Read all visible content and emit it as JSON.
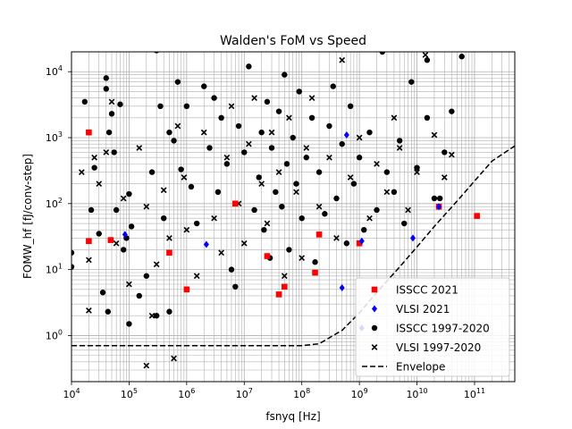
{
  "chart_data": {
    "type": "scatter",
    "title": "Walden's FoM vs Speed",
    "xlabel": "fsnyq [Hz]",
    "ylabel": "FOMW_hf [fJ/conv-step]",
    "xscale": "log",
    "yscale": "log",
    "xlim": [
      10000,
      500000000000
    ],
    "ylim": [
      0.2,
      20000
    ],
    "grid": true,
    "grid_minor": true,
    "legend_position": "bottom-right",
    "x_ticks": [
      {
        "value": 10000,
        "base": "10",
        "exp": "4"
      },
      {
        "value": 100000,
        "base": "10",
        "exp": "5"
      },
      {
        "value": 1000000,
        "base": "10",
        "exp": "6"
      },
      {
        "value": 10000000,
        "base": "10",
        "exp": "7"
      },
      {
        "value": 100000000,
        "base": "10",
        "exp": "8"
      },
      {
        "value": 1000000000,
        "base": "10",
        "exp": "9"
      },
      {
        "value": 10000000000,
        "base": "10",
        "exp": "10"
      },
      {
        "value": 100000000000,
        "base": "10",
        "exp": "11"
      }
    ],
    "y_ticks": [
      {
        "value": 1,
        "base": "10",
        "exp": "0"
      },
      {
        "value": 10,
        "base": "10",
        "exp": "1"
      },
      {
        "value": 100,
        "base": "10",
        "exp": "2"
      },
      {
        "value": 1000,
        "base": "10",
        "exp": "3"
      },
      {
        "value": 10000,
        "base": "10",
        "exp": "4"
      }
    ],
    "series": [
      {
        "name": "ISSCC 2021",
        "marker": "square",
        "color": "#ff0000",
        "points": [
          [
            20000,
            27
          ],
          [
            20000,
            1200
          ],
          [
            48000,
            28
          ],
          [
            500000,
            18
          ],
          [
            1000000,
            5
          ],
          [
            7000000,
            100
          ],
          [
            25000000,
            16
          ],
          [
            40000000,
            4.2
          ],
          [
            50000000,
            5.5
          ],
          [
            200000000,
            34
          ],
          [
            1000000000,
            25
          ],
          [
            24000000000,
            90
          ],
          [
            110000000000,
            65
          ],
          [
            170000000,
            9
          ]
        ]
      },
      {
        "name": "VLSI 2021",
        "marker": "diamond",
        "color": "#0000ff",
        "points": [
          [
            85000,
            34
          ],
          [
            2200000,
            24
          ],
          [
            600000000,
            1100
          ],
          [
            500000000,
            5.3
          ],
          [
            1100000000,
            27
          ],
          [
            8500000000,
            30
          ],
          [
            24000000000,
            90
          ],
          [
            1100000000,
            1.3
          ]
        ]
      },
      {
        "name": "ISSCC 1997-2020",
        "marker": "circle",
        "color": "#000000",
        "points": [
          [
            10000,
            18
          ],
          [
            10000,
            11
          ],
          [
            17000,
            3500
          ],
          [
            20000,
            1200
          ],
          [
            22000,
            80
          ],
          [
            25000,
            350
          ],
          [
            30000,
            35
          ],
          [
            35000,
            4.5
          ],
          [
            40000,
            8000
          ],
          [
            40000,
            5500
          ],
          [
            43000,
            2.3
          ],
          [
            45000,
            1200
          ],
          [
            50000,
            2300
          ],
          [
            55000,
            600
          ],
          [
            60000,
            80
          ],
          [
            70000,
            3200
          ],
          [
            80000,
            20
          ],
          [
            90000,
            30
          ],
          [
            100000,
            140
          ],
          [
            100000,
            1.5
          ],
          [
            110000,
            45
          ],
          [
            150000,
            4
          ],
          [
            200000,
            8
          ],
          [
            250000,
            300
          ],
          [
            300000,
            2
          ],
          [
            300000,
            21000
          ],
          [
            350000,
            3000
          ],
          [
            400000,
            60
          ],
          [
            500000,
            2.3
          ],
          [
            500000,
            1200
          ],
          [
            600000,
            900
          ],
          [
            700000,
            7000
          ],
          [
            800000,
            330
          ],
          [
            1000000,
            3000
          ],
          [
            1200000,
            180
          ],
          [
            1500000,
            50
          ],
          [
            2000000,
            6000
          ],
          [
            2500000,
            700
          ],
          [
            3000000,
            4000
          ],
          [
            3500000,
            150
          ],
          [
            4000000,
            2000
          ],
          [
            5000000,
            400
          ],
          [
            6000000,
            10
          ],
          [
            7000000,
            5.5
          ],
          [
            8000000,
            1500
          ],
          [
            10000000,
            600
          ],
          [
            12000000,
            12000
          ],
          [
            15000000,
            80
          ],
          [
            18000000,
            250
          ],
          [
            20000000,
            1200
          ],
          [
            22000000,
            40
          ],
          [
            25000000,
            3500
          ],
          [
            28000000,
            15
          ],
          [
            30000000,
            700
          ],
          [
            35000000,
            150
          ],
          [
            40000000,
            2500
          ],
          [
            45000000,
            90
          ],
          [
            50000000,
            9000
          ],
          [
            55000000,
            400
          ],
          [
            60000000,
            20
          ],
          [
            70000000,
            1000
          ],
          [
            80000000,
            200
          ],
          [
            90000000,
            5000
          ],
          [
            100000000,
            60
          ],
          [
            120000000,
            500
          ],
          [
            150000000,
            2000
          ],
          [
            170000000,
            13
          ],
          [
            200000000,
            300
          ],
          [
            250000000,
            70
          ],
          [
            300000000,
            1500
          ],
          [
            350000000,
            6000
          ],
          [
            400000000,
            120
          ],
          [
            500000000,
            800
          ],
          [
            600000000,
            25
          ],
          [
            700000000,
            3000
          ],
          [
            800000000,
            200
          ],
          [
            1000000000,
            500
          ],
          [
            1200000000,
            40
          ],
          [
            1500000000,
            1200
          ],
          [
            2000000000,
            80
          ],
          [
            2500000000,
            20000
          ],
          [
            3000000000,
            300
          ],
          [
            4000000000,
            150
          ],
          [
            5000000000,
            900
          ],
          [
            6000000000,
            50
          ],
          [
            8000000000,
            7000
          ],
          [
            10000000000,
            350
          ],
          [
            15000000000,
            2000
          ],
          [
            20000000000,
            120
          ],
          [
            30000000000,
            600
          ],
          [
            40000000000,
            2500
          ],
          [
            25000000000,
            120
          ],
          [
            60000000000,
            17000
          ],
          [
            15000000000,
            15000
          ]
        ]
      },
      {
        "name": "VLSI 1997-2020",
        "marker": "x",
        "color": "#000000",
        "points": [
          [
            15000,
            300
          ],
          [
            20000,
            2.4
          ],
          [
            20000,
            14
          ],
          [
            25000,
            500
          ],
          [
            30000,
            200
          ],
          [
            40000,
            600
          ],
          [
            50000,
            3500
          ],
          [
            60000,
            25
          ],
          [
            80000,
            120
          ],
          [
            100000,
            6
          ],
          [
            150000,
            700
          ],
          [
            200000,
            90
          ],
          [
            250000,
            2
          ],
          [
            300000,
            12
          ],
          [
            400000,
            160
          ],
          [
            500000,
            30
          ],
          [
            600000,
            0.45
          ],
          [
            700000,
            1500
          ],
          [
            900000,
            250
          ],
          [
            1000000,
            40
          ],
          [
            1500000,
            8
          ],
          [
            2000000,
            1200
          ],
          [
            3000000,
            60
          ],
          [
            4000000,
            18
          ],
          [
            5000000,
            500
          ],
          [
            6000000,
            3000
          ],
          [
            8000000,
            100
          ],
          [
            10000000,
            25
          ],
          [
            12000000,
            800
          ],
          [
            15000000,
            4000
          ],
          [
            20000000,
            200
          ],
          [
            25000000,
            50
          ],
          [
            30000000,
            1200
          ],
          [
            40000000,
            300
          ],
          [
            50000000,
            8
          ],
          [
            60000000,
            2000
          ],
          [
            80000000,
            150
          ],
          [
            100000000,
            15
          ],
          [
            120000000,
            700
          ],
          [
            150000000,
            4000
          ],
          [
            200000000,
            90
          ],
          [
            300000000,
            500
          ],
          [
            400000000,
            30
          ],
          [
            500000000,
            15000
          ],
          [
            700000000,
            250
          ],
          [
            1000000000,
            1000
          ],
          [
            1500000000,
            60
          ],
          [
            2000000000,
            400
          ],
          [
            3000000000,
            150
          ],
          [
            4000000000,
            2000
          ],
          [
            5000000000,
            700
          ],
          [
            7000000000,
            80
          ],
          [
            10000000000,
            300
          ],
          [
            14000000000,
            18000
          ],
          [
            20000000000,
            1100
          ],
          [
            30000000000,
            250
          ],
          [
            40000000000,
            550
          ],
          [
            200000,
            0.35
          ]
        ]
      }
    ],
    "envelope": {
      "name": "Envelope",
      "style": "dashed",
      "color": "#000000",
      "floor": 0.7,
      "corner_hz": 200000000,
      "points": [
        [
          10000,
          0.7
        ],
        [
          100000000,
          0.7
        ],
        [
          200000000,
          0.75
        ],
        [
          500000000,
          1.2
        ],
        [
          1000000000,
          2.2
        ],
        [
          2000000000,
          4.5
        ],
        [
          5000000000,
          11
        ],
        [
          10000000000,
          22
        ],
        [
          20000000000,
          45
        ],
        [
          50000000000,
          110
        ],
        [
          100000000000,
          220
        ],
        [
          200000000000,
          440
        ],
        [
          500000000000,
          750
        ]
      ]
    }
  }
}
